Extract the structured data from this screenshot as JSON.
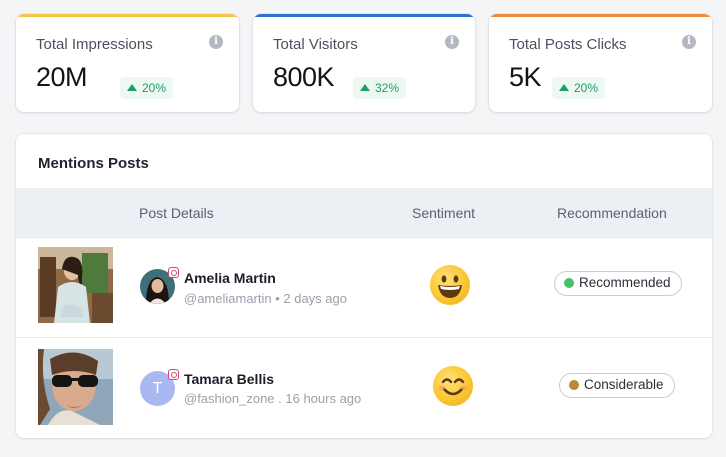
{
  "stats": [
    {
      "title": "Total Impressions",
      "value": "20M",
      "delta": "20%",
      "accent": "#f3c64a"
    },
    {
      "title": "Total Visitors",
      "value": "800K",
      "delta": "32%",
      "accent": "#2f73d9"
    },
    {
      "title": "Total Posts Clicks",
      "value": "5K",
      "delta": "20%",
      "accent": "#f08a35"
    }
  ],
  "info_icon_glyph": "i",
  "mentions": {
    "title": "Mentions Posts",
    "columns": {
      "post_details": "Post Details",
      "sentiment": "Sentiment",
      "recommendation": "Recommendation"
    },
    "rows": [
      {
        "name": "Amelia Martin",
        "subtitle": "@ameliamartin • 2 days ago",
        "sentiment_icon": "grinning-face-icon",
        "recommendation": "Recommended",
        "recommendation_color": "#49c16a",
        "avatar_kind": "photo"
      },
      {
        "name": "Tamara Bellis",
        "subtitle": "@fashion_zone . 16 hours ago",
        "avatar_letter": "T",
        "sentiment_icon": "smiling-face-icon",
        "recommendation": "Considerable",
        "recommendation_color": "#b98a2f",
        "avatar_kind": "letter"
      }
    ]
  }
}
